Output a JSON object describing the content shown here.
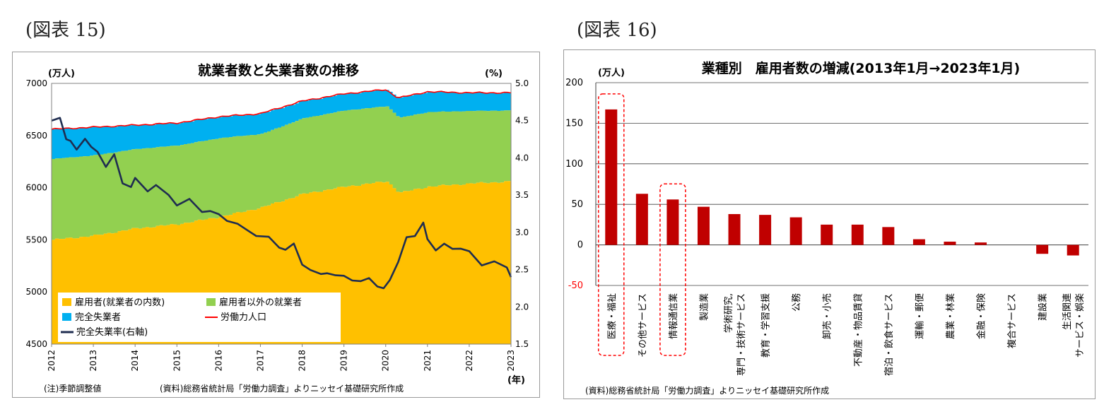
{
  "figures": [
    {
      "label": "(図表 15)"
    },
    {
      "label": "(図表 16)"
    }
  ],
  "left": {
    "title": "就業者数と失業者数の推移",
    "y_left_unit": "(万人)",
    "y_right_unit": "(%)",
    "x_unit": "(年)",
    "note": "(注)季節調整値",
    "source": "(資料)総務省統計局「労働力調査」よりニッセイ基礎研究所作成",
    "colors": {
      "employees": "#ffc000",
      "other_employed": "#92d050",
      "unemployed": "#00b0f0",
      "labor_force": "#ff0000",
      "rate": "#1f2d50"
    }
  },
  "right": {
    "title": "業種別　雇用者数の増減(2013年1月→2023年1月)",
    "y_unit": "(万人)",
    "source": "(資料)総務省統計局「労働力調査」よりニッセイ基礎研究所作成",
    "bar_color": "#c00000",
    "category_labels": [
      [
        "医療・福祉"
      ],
      [
        "その他サービス"
      ],
      [
        "情報通信業"
      ],
      [
        "製造業"
      ],
      [
        "学術研究,",
        "専門・技術サービス"
      ],
      [
        "教育・学習支援"
      ],
      [
        "公務"
      ],
      [
        "卸売・小売"
      ],
      [
        "不動産・物品賃貸"
      ],
      [
        "宿泊・飲食サービス"
      ],
      [
        "運輸・郵便"
      ],
      [
        "農業・林業"
      ],
      [
        "金融・保険"
      ],
      [
        "複合サービス"
      ],
      [
        "建設業"
      ],
      [
        "生活関連",
        "サービス・娯楽"
      ]
    ]
  },
  "chart_data": [
    {
      "type": "area",
      "title": "就業者数と失業者数の推移",
      "x_ticks": [
        "2012",
        "2013",
        "2014",
        "2015",
        "2016",
        "2017",
        "2018",
        "2019",
        "2020",
        "2021",
        "2022",
        "2023"
      ],
      "ylim": [
        4500,
        7000
      ],
      "yticks": [
        4500,
        5000,
        5500,
        6000,
        6500,
        7000
      ],
      "y2lim": [
        1.5,
        5.0
      ],
      "y2ticks": [
        1.5,
        2.0,
        2.5,
        3.0,
        3.5,
        4.0,
        4.5,
        5.0
      ],
      "legend_position": "bottom-left",
      "series_names": [
        "雇用者(就業者の内数)",
        "雇用者以外の就業者",
        "完全失業者",
        "労働力人口",
        "完全失業率(右軸)"
      ],
      "anchors": {
        "t": [
          2012.0,
          2013.0,
          2014.0,
          2015.0,
          2016.0,
          2017.0,
          2018.0,
          2019.0,
          2020.0,
          2020.3,
          2021.0,
          2022.0,
          2023.0
        ],
        "labor_force": [
          6560,
          6580,
          6600,
          6620,
          6680,
          6710,
          6830,
          6900,
          6940,
          6860,
          6920,
          6910,
          6910
        ],
        "unemployed": [
          285,
          270,
          230,
          215,
          205,
          195,
          165,
          160,
          160,
          190,
          195,
          175,
          170
        ],
        "employees": [
          5500,
          5540,
          5610,
          5650,
          5720,
          5810,
          5940,
          6010,
          6060,
          5950,
          6010,
          6040,
          6060
        ]
      },
      "unemployment_rate": {
        "t": [
          2012.0,
          2012.2,
          2012.35,
          2012.45,
          2012.6,
          2012.8,
          2012.95,
          2013.1,
          2013.3,
          2013.5,
          2013.7,
          2013.9,
          2014.0,
          2014.3,
          2014.5,
          2014.8,
          2015.0,
          2015.3,
          2015.6,
          2015.8,
          2016.0,
          2016.2,
          2016.45,
          2016.7,
          2016.9,
          2017.2,
          2017.45,
          2017.6,
          2017.8,
          2018.0,
          2018.2,
          2018.45,
          2018.6,
          2018.8,
          2019.0,
          2019.2,
          2019.4,
          2019.6,
          2019.8,
          2019.95,
          2020.1,
          2020.3,
          2020.5,
          2020.7,
          2020.9,
          2021.0,
          2021.2,
          2021.4,
          2021.6,
          2021.8,
          2022.0,
          2022.3,
          2022.6,
          2022.9,
          2023.0
        ],
        "values": [
          4.5,
          4.5,
          4.3,
          4.2,
          4.1,
          4.3,
          4.1,
          4.1,
          3.9,
          4.0,
          3.7,
          3.6,
          3.7,
          3.6,
          3.6,
          3.5,
          3.4,
          3.4,
          3.3,
          3.3,
          3.2,
          3.2,
          3.1,
          3.0,
          3.0,
          2.9,
          2.8,
          2.8,
          2.8,
          2.6,
          2.5,
          2.4,
          2.5,
          2.4,
          2.4,
          2.4,
          2.3,
          2.4,
          2.3,
          2.2,
          2.4,
          2.6,
          2.9,
          3.0,
          3.1,
          2.9,
          2.8,
          2.8,
          2.8,
          2.8,
          2.7,
          2.6,
          2.6,
          2.5,
          2.4
        ]
      }
    },
    {
      "type": "bar",
      "title": "業種別　雇用者数の増減(2013年1月→2023年1月)",
      "categories": [
        "医療・福祉",
        "その他サービス",
        "情報通信業",
        "製造業",
        "学術研究,専門・技術サービス",
        "教育・学習支援",
        "公務",
        "卸売・小売",
        "不動産・物品賃貸",
        "宿泊・飲食サービス",
        "運輸・郵便",
        "農業・林業",
        "金融・保険",
        "複合サービス",
        "建設業",
        "生活関連サービス・娯楽"
      ],
      "values": [
        167,
        63,
        56,
        47,
        38,
        37,
        34,
        25,
        25,
        22,
        7,
        4,
        3,
        0,
        -11,
        -13
      ],
      "ylim": [
        -50,
        200
      ],
      "yticks": [
        -50,
        0,
        50,
        100,
        150,
        200
      ],
      "highlighted": [
        "医療・福祉",
        "情報通信業"
      ]
    }
  ]
}
